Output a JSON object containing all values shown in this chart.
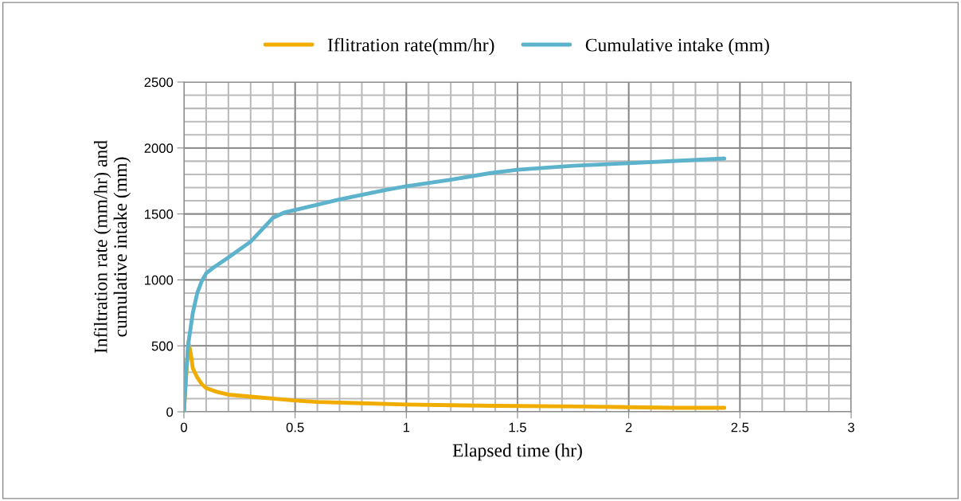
{
  "chart_data": {
    "type": "line",
    "xlabel": "Elapsed time (hr)",
    "ylabel": "Infiltration rate (mm/hr) and\ncumulative intake (mm)",
    "xlim": [
      0,
      3
    ],
    "xticks": [
      0,
      0.5,
      1,
      1.5,
      2,
      2.5,
      3
    ],
    "ylim": [
      0,
      2500
    ],
    "yticks": [
      0,
      500,
      1000,
      1500,
      2000,
      2500
    ],
    "grid": true,
    "legend": "top",
    "marker": "none",
    "line_style": "solid",
    "series": [
      {
        "name": "Iflitration rate(mm/hr)",
        "color": "#f0ad00",
        "x": [
          0,
          0.02,
          0.03,
          0.04,
          0.06,
          0.08,
          0.1,
          0.15,
          0.2,
          0.3,
          0.4,
          0.5,
          0.6,
          0.8,
          1.0,
          1.2,
          1.4,
          1.8,
          2.0,
          2.2,
          2.43
        ],
        "values": [
          0,
          530,
          450,
          330,
          260,
          210,
          180,
          150,
          130,
          115,
          100,
          85,
          75,
          65,
          55,
          50,
          45,
          40,
          35,
          30,
          30
        ]
      },
      {
        "name": "Cumulative intake (mm)",
        "color": "#5db3cc",
        "x": [
          0,
          0.01,
          0.02,
          0.04,
          0.06,
          0.08,
          0.1,
          0.13,
          0.2,
          0.3,
          0.4,
          0.45,
          0.5,
          0.7,
          0.9,
          1.0,
          1.2,
          1.38,
          1.5,
          1.75,
          2.0,
          2.25,
          2.43
        ],
        "values": [
          0,
          300,
          520,
          750,
          900,
          990,
          1050,
          1090,
          1170,
          1290,
          1470,
          1510,
          1530,
          1610,
          1680,
          1710,
          1760,
          1810,
          1835,
          1865,
          1885,
          1905,
          1920
        ]
      }
    ]
  }
}
